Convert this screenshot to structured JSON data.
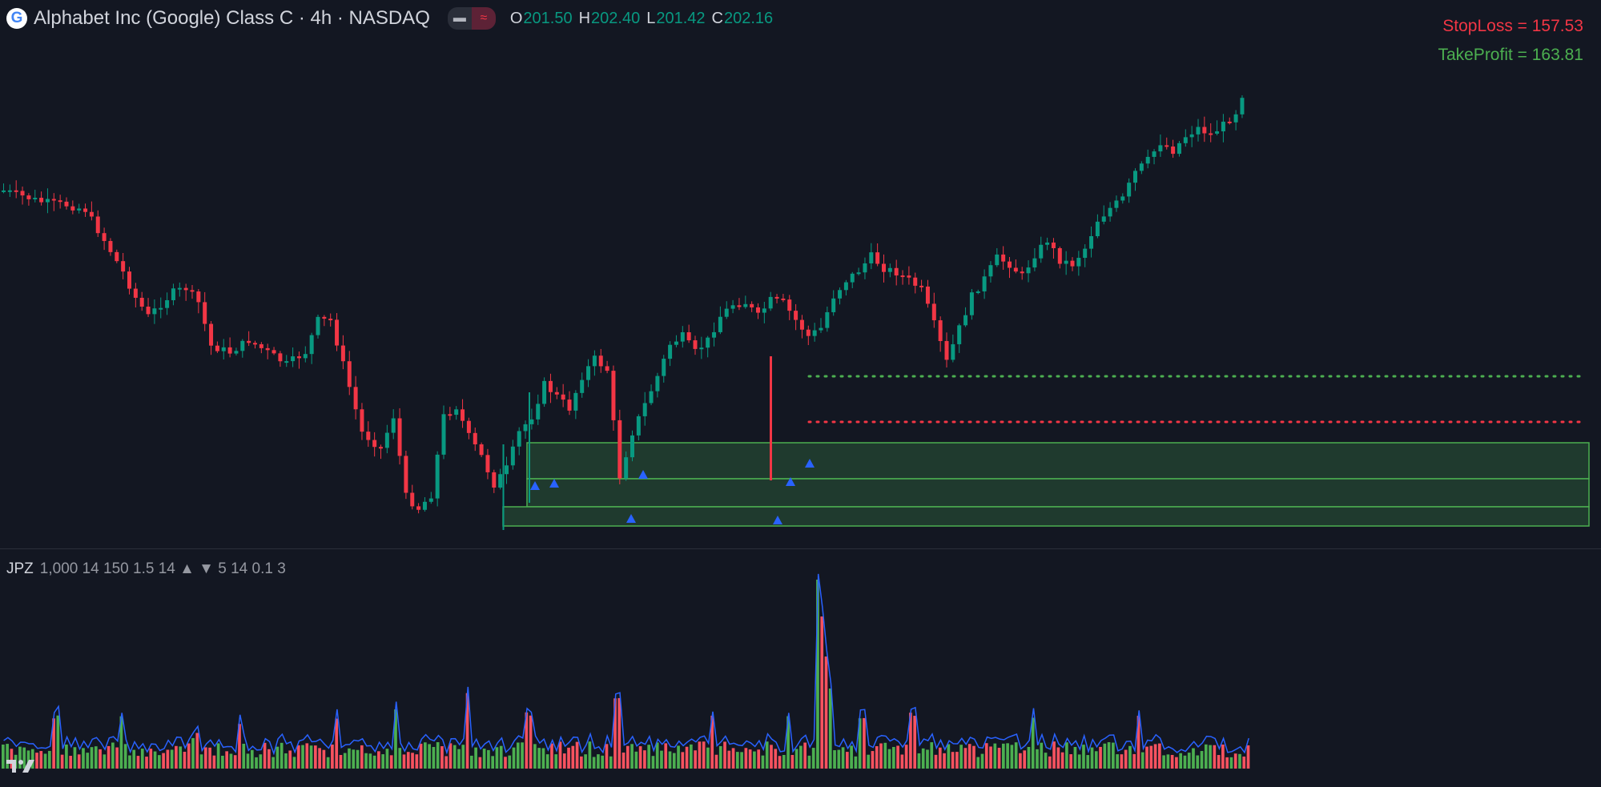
{
  "header": {
    "symbol_logo": "G",
    "symbol_title": "Alphabet Inc (Google) Class C · 4h · NASDAQ",
    "ohlc": [
      {
        "key": "O",
        "value": "201.50"
      },
      {
        "key": "H",
        "value": "202.40"
      },
      {
        "key": "L",
        "value": "201.42"
      },
      {
        "key": "C",
        "value": "202.16"
      }
    ],
    "icons": {
      "visibility": "eye-icon",
      "data_window": "wave-icon"
    }
  },
  "labels": {
    "stop_loss": "StopLoss = 157.53",
    "take_profit": "TakeProfit = 163.81"
  },
  "indicator": {
    "name": "JPZ",
    "params": "1,000 14 150 1.5 14 ▲ ▼ 5 14 0.1 3"
  },
  "colors": {
    "background": "#131722",
    "up": "#089981",
    "down": "#f23645",
    "text": "#d1d4dc",
    "take_profit": "#4caf50",
    "stop_loss": "#f23645",
    "zone_fill": "#1f3a2e",
    "zone_border": "#4caf50",
    "marker": "#2962ff",
    "volume_up": "#4caf50",
    "volume_down": "#f7525f",
    "volume_line": "#2962ff"
  },
  "chart_data": {
    "type": "candlestick",
    "symbol": "Alphabet Inc (Google) Class C",
    "interval": "4h",
    "exchange": "NASDAQ",
    "last_candle": {
      "open": 201.5,
      "high": 202.4,
      "low": 201.42,
      "close": 202.16
    },
    "stop_loss": 157.53,
    "take_profit": 163.81,
    "series_shape": {
      "ranges": [
        [
          0,
          184
        ],
        [
          20,
          196
        ],
        [
          45,
          255
        ],
        [
          60,
          380
        ],
        [
          80,
          328
        ],
        [
          105,
          420
        ],
        [
          125,
          520
        ],
        [
          150,
          420
        ],
        [
          170,
          360
        ],
        [
          195,
          560
        ],
        [
          240,
          420
        ],
        [
          280,
          305
        ],
        [
          355,
          235
        ],
        [
          390,
          250
        ],
        [
          445,
          365
        ],
        [
          465,
          260
        ],
        [
          520,
          205
        ],
        [
          560,
          120
        ],
        [
          590,
          140
        ],
        [
          618,
          80
        ]
      ],
      "count": 620,
      "spikes": [
        [
          62,
          210,
          165
        ],
        [
          72,
          216,
          150
        ],
        [
          82,
          230,
          190
        ],
        [
          88,
          240,
          110
        ],
        [
          97,
          225,
          140
        ],
        [
          106,
          212,
          120
        ],
        [
          110,
          230,
          150
        ],
        [
          115,
          400,
          180
        ],
        [
          121,
          380,
          120
        ],
        [
          126,
          325,
          95
        ]
      ]
    },
    "zones": [
      {
        "row_start": 205,
        "row_end": 612
      },
      {
        "row_start": 205,
        "row_end": 612
      },
      {
        "row_start": 195,
        "row_end": 612
      }
    ],
    "markers": [
      {
        "i": 207
      },
      {
        "i": 214
      },
      {
        "i": 244
      },
      {
        "i": 249
      },
      {
        "i": 301
      },
      {
        "i": 306
      },
      {
        "i": 313
      }
    ],
    "volume": "indicator JPZ histogram (green/red bars with blue line)"
  }
}
